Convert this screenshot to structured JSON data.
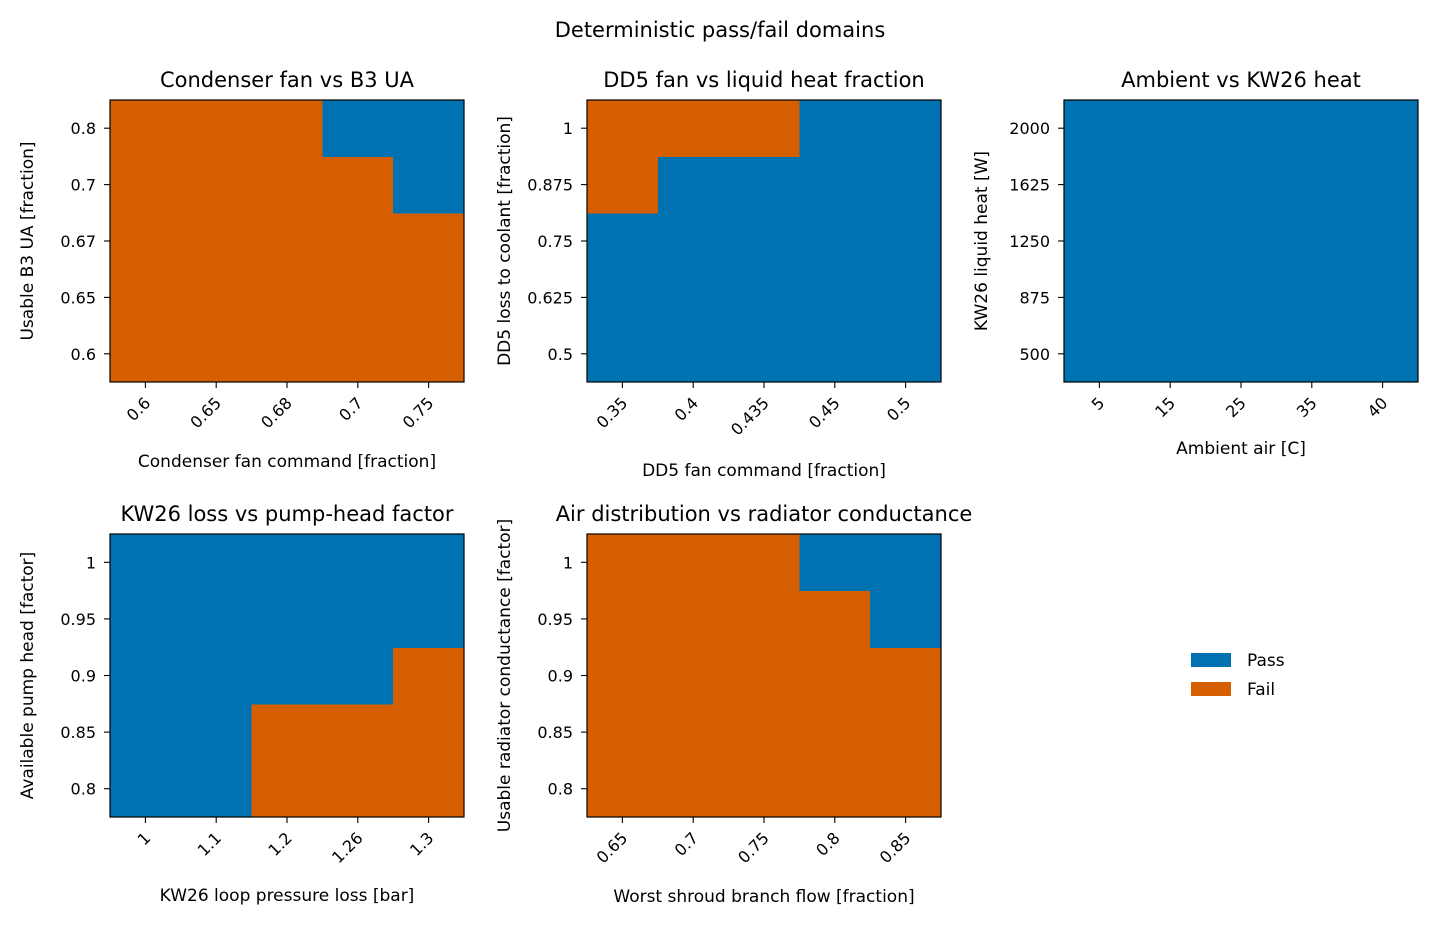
{
  "figure": {
    "title": "Deterministic pass/fail domains"
  },
  "colors": {
    "pass": "#0072b2",
    "fail": "#d55e00"
  },
  "legend": {
    "placement": "right-middle",
    "entries": [
      {
        "label": "Pass",
        "color": "#0072b2"
      },
      {
        "label": "Fail",
        "color": "#d55e00"
      }
    ]
  },
  "chart_data": [
    {
      "type": "heatmap",
      "title": "Condenser fan vs B3 UA",
      "xlabel": "Condenser fan command [fraction]",
      "ylabel": "Usable B3 UA [fraction]",
      "x_ticks": [
        "0.6",
        "0.65",
        "0.68",
        "0.7",
        "0.75"
      ],
      "y_ticks": [
        "0.6",
        "0.65",
        "0.67",
        "0.7",
        "0.8"
      ],
      "x_tick_rotation": 45,
      "grid": [
        [
          "Fail",
          "Fail",
          "Fail",
          "Fail",
          "Fail"
        ],
        [
          "Fail",
          "Fail",
          "Fail",
          "Fail",
          "Fail"
        ],
        [
          "Fail",
          "Fail",
          "Fail",
          "Fail",
          "Fail"
        ],
        [
          "Fail",
          "Fail",
          "Fail",
          "Fail",
          "Pass"
        ],
        [
          "Fail",
          "Fail",
          "Fail",
          "Pass",
          "Pass"
        ]
      ]
    },
    {
      "type": "heatmap",
      "title": "DD5 fan vs liquid heat fraction",
      "xlabel": "DD5 fan command [fraction]",
      "ylabel": "DD5 loss to coolant [fraction]",
      "x_ticks": [
        "0.35",
        "0.4",
        "0.435",
        "0.45",
        "0.5"
      ],
      "y_ticks": [
        "0.5",
        "0.625",
        "0.75",
        "0.875",
        "1"
      ],
      "x_tick_rotation": 45,
      "grid": [
        [
          "Pass",
          "Pass",
          "Pass",
          "Pass",
          "Pass"
        ],
        [
          "Pass",
          "Pass",
          "Pass",
          "Pass",
          "Pass"
        ],
        [
          "Pass",
          "Pass",
          "Pass",
          "Pass",
          "Pass"
        ],
        [
          "Fail",
          "Pass",
          "Pass",
          "Pass",
          "Pass"
        ],
        [
          "Fail",
          "Fail",
          "Fail",
          "Pass",
          "Pass"
        ]
      ]
    },
    {
      "type": "heatmap",
      "title": "Ambient vs KW26 heat",
      "xlabel": "Ambient air [C]",
      "ylabel": "KW26 liquid heat [W]",
      "x_ticks": [
        "5",
        "15",
        "25",
        "35",
        "40"
      ],
      "y_ticks": [
        "500",
        "875",
        "1250",
        "1625",
        "2000"
      ],
      "x_tick_rotation": 45,
      "grid": [
        [
          "Pass",
          "Pass",
          "Pass",
          "Pass",
          "Pass"
        ],
        [
          "Pass",
          "Pass",
          "Pass",
          "Pass",
          "Pass"
        ],
        [
          "Pass",
          "Pass",
          "Pass",
          "Pass",
          "Pass"
        ],
        [
          "Pass",
          "Pass",
          "Pass",
          "Pass",
          "Pass"
        ],
        [
          "Pass",
          "Pass",
          "Pass",
          "Pass",
          "Pass"
        ]
      ]
    },
    {
      "type": "heatmap",
      "title": "KW26 loss vs pump-head factor",
      "xlabel": "KW26 loop pressure loss [bar]",
      "ylabel": "Available pump head [factor]",
      "x_ticks": [
        "1",
        "1.1",
        "1.2",
        "1.26",
        "1.3"
      ],
      "y_ticks": [
        "0.8",
        "0.85",
        "0.9",
        "0.95",
        "1"
      ],
      "x_tick_rotation": 45,
      "grid": [
        [
          "Pass",
          "Pass",
          "Fail",
          "Fail",
          "Fail"
        ],
        [
          "Pass",
          "Pass",
          "Fail",
          "Fail",
          "Fail"
        ],
        [
          "Pass",
          "Pass",
          "Pass",
          "Pass",
          "Fail"
        ],
        [
          "Pass",
          "Pass",
          "Pass",
          "Pass",
          "Pass"
        ],
        [
          "Pass",
          "Pass",
          "Pass",
          "Pass",
          "Pass"
        ]
      ]
    },
    {
      "type": "heatmap",
      "title": "Air distribution vs radiator conductance",
      "xlabel": "Worst shroud branch flow [fraction]",
      "ylabel": "Usable radiator conductance [factor]",
      "x_ticks": [
        "0.65",
        "0.7",
        "0.75",
        "0.8",
        "0.85"
      ],
      "y_ticks": [
        "0.8",
        "0.85",
        "0.9",
        "0.95",
        "1"
      ],
      "x_tick_rotation": 45,
      "grid": [
        [
          "Fail",
          "Fail",
          "Fail",
          "Fail",
          "Fail"
        ],
        [
          "Fail",
          "Fail",
          "Fail",
          "Fail",
          "Fail"
        ],
        [
          "Fail",
          "Fail",
          "Fail",
          "Fail",
          "Fail"
        ],
        [
          "Fail",
          "Fail",
          "Fail",
          "Fail",
          "Pass"
        ],
        [
          "Fail",
          "Fail",
          "Fail",
          "Pass",
          "Pass"
        ]
      ]
    }
  ]
}
